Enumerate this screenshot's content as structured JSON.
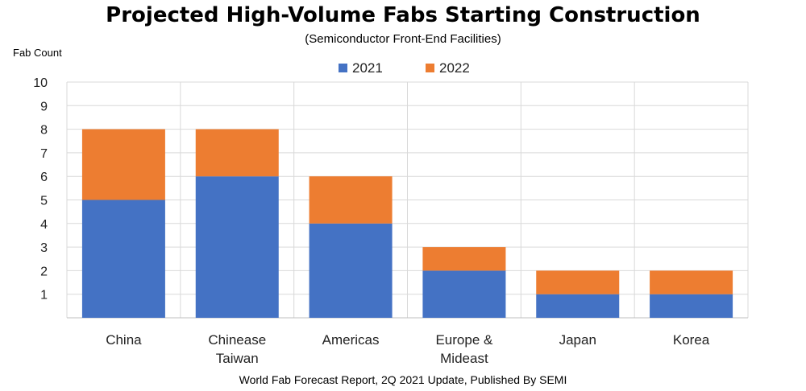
{
  "title": "Projected High-Volume Fabs Starting Construction",
  "subtitle": "(Semiconductor Front-End Facilities)",
  "source": "World Fab Forecast Report, 2Q 2021 Update, Published By SEMI",
  "colors": {
    "s2021": "#4472C4",
    "s2022": "#ED7D31",
    "grid": "#d9d9d9"
  },
  "chart_data": {
    "type": "bar",
    "stacked": true,
    "title": "Projected High-Volume Fabs Starting Construction",
    "subtitle": "(Semiconductor Front-End Facilities)",
    "ylabel": "Fab Count",
    "xlabel": "",
    "ylim": [
      0,
      10
    ],
    "yticks": [
      1,
      2,
      3,
      4,
      5,
      6,
      7,
      8,
      9,
      10
    ],
    "grid": true,
    "legend_position": "top",
    "categories": [
      [
        "China"
      ],
      [
        "Chinease",
        "Taiwan"
      ],
      [
        "Americas"
      ],
      [
        "Europe &",
        "Mideast"
      ],
      [
        "Japan"
      ],
      [
        "Korea"
      ]
    ],
    "series": [
      {
        "name": "2021",
        "values": [
          5,
          6,
          4,
          2,
          1,
          1
        ]
      },
      {
        "name": "2022",
        "values": [
          3,
          2,
          2,
          1,
          1,
          1
        ]
      }
    ]
  }
}
